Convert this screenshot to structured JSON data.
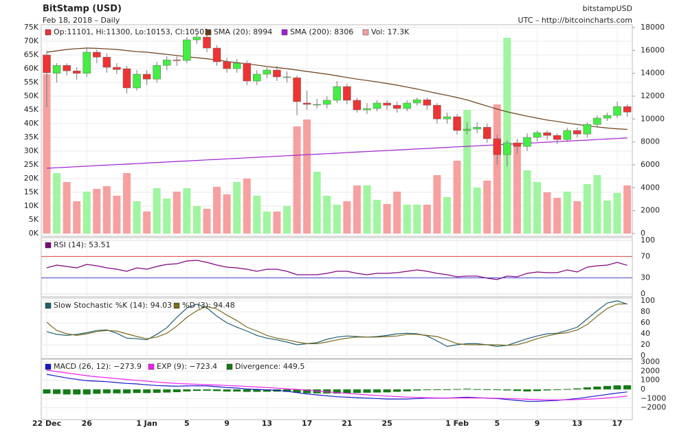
{
  "chart_data": [
    {
      "type": "candlestick",
      "title": "BitStamp (USD)",
      "subtitle": "Feb 18, 2018 – Daily",
      "source": "bitstampUSD",
      "note": "UTC – http://bitcoincharts.com",
      "categories": [
        "22 Dec",
        null,
        null,
        null,
        "26",
        null,
        null,
        null,
        null,
        null,
        "1 Jan",
        null,
        null,
        null,
        "5",
        null,
        null,
        null,
        "9",
        null,
        null,
        null,
        "13",
        null,
        null,
        null,
        "17",
        null,
        null,
        null,
        "21",
        null,
        null,
        null,
        "25",
        null,
        null,
        null,
        null,
        null,
        null,
        "1 Feb",
        null,
        null,
        null,
        "5",
        null,
        null,
        null,
        "9",
        null,
        null,
        null,
        "13",
        null,
        null,
        null,
        "17",
        null
      ],
      "ohlc_label": "Op:11101, Hi:11300, Lo:10153, Cl:10501",
      "up_color": "#44ee44",
      "down_color": "#ee3333",
      "open": [
        65000,
        58300,
        61200,
        59200,
        58300,
        66000,
        64200,
        60500,
        60000,
        53000,
        58000,
        56200,
        61200,
        63200,
        63000,
        70500,
        71500,
        67500,
        62500,
        60000,
        62000,
        55500,
        58000,
        59500,
        57000,
        56700,
        47500,
        47000,
        47000,
        48500,
        53500,
        48500,
        45000,
        45500,
        47500,
        46700,
        45500,
        47500,
        48700,
        46700,
        41700,
        42500,
        37500,
        38000,
        38700,
        34500,
        28700,
        33000,
        31700,
        35000,
        36700,
        35700,
        34200,
        37500,
        36200,
        39700,
        42000,
        43000,
        46200
      ],
      "high": [
        66500,
        62000,
        62000,
        60500,
        67500,
        67000,
        65500,
        62000,
        61000,
        59500,
        59500,
        62500,
        64500,
        64500,
        71500,
        73000,
        72500,
        68500,
        64000,
        63500,
        63000,
        59500,
        60500,
        61000,
        59000,
        57500,
        52000,
        49000,
        50000,
        55500,
        54500,
        49500,
        47500,
        48500,
        48500,
        48000,
        48500,
        49500,
        49500,
        47500,
        44000,
        43500,
        40500,
        40500,
        40000,
        36000,
        34000,
        34500,
        36500,
        37500,
        37500,
        36500,
        38500,
        38500,
        40500,
        43000,
        44000,
        48000,
        47000
      ],
      "low": [
        46000,
        55000,
        57500,
        56000,
        57000,
        62000,
        58500,
        58000,
        51000,
        52000,
        54000,
        55000,
        59500,
        61000,
        62000,
        69000,
        66000,
        61000,
        58500,
        58500,
        54000,
        54000,
        56500,
        55500,
        55000,
        43000,
        45000,
        45500,
        45500,
        47500,
        47000,
        44000,
        43500,
        44500,
        45000,
        44000,
        44500,
        46500,
        45000,
        40000,
        40000,
        36000,
        36000,
        36500,
        33000,
        25000,
        24500,
        29000,
        30000,
        33500,
        34000,
        32500,
        33500,
        35000,
        35000,
        38500,
        41000,
        42000,
        42500
      ],
      "close": [
        58500,
        61200,
        59200,
        58300,
        66000,
        64200,
        60500,
        59700,
        53000,
        58000,
        56200,
        61200,
        63200,
        63000,
        70500,
        71500,
        67500,
        62500,
        60000,
        62000,
        55500,
        58000,
        59500,
        57000,
        57000,
        48000,
        47000,
        47000,
        48500,
        53500,
        48500,
        45000,
        45500,
        47500,
        46700,
        45500,
        47500,
        48700,
        46700,
        41700,
        42500,
        37500,
        38000,
        38700,
        34500,
        28700,
        33000,
        31700,
        35000,
        36700,
        35700,
        34200,
        37500,
        36200,
        39700,
        42000,
        43000,
        46200,
        44200
      ],
      "series": [
        {
          "name": "SMA (20): 8994",
          "color": "#6b3b14",
          "values": [
            66000,
            66500,
            67000,
            67300,
            67500,
            67400,
            67200,
            67000,
            66600,
            66200,
            66000,
            65600,
            65200,
            64800,
            64300,
            64000,
            63600,
            63200,
            62600,
            62200,
            61800,
            61300,
            60800,
            60400,
            60000,
            59500,
            59000,
            58500,
            58000,
            57400,
            56800,
            56200,
            55700,
            55200,
            54600,
            54000,
            53300,
            52600,
            51800,
            51000,
            50300,
            49500,
            48600,
            47500,
            46400,
            45300,
            44300,
            43500,
            42700,
            42000,
            41300,
            40800,
            40200,
            39700,
            39200,
            38800,
            38400,
            38100,
            37900
          ]
        },
        {
          "name": "SMA (200): 8306",
          "color": "#a020d0",
          "values": [
            23750,
            23940,
            24130,
            24320,
            24510,
            24700,
            24890,
            25080,
            25270,
            25460,
            25650,
            25840,
            26030,
            26220,
            26410,
            26600,
            26790,
            26980,
            27170,
            27360,
            27550,
            27740,
            27930,
            28120,
            28310,
            28500,
            28690,
            28880,
            29070,
            29260,
            29450,
            29640,
            29830,
            30020,
            30210,
            30400,
            30590,
            30780,
            30970,
            31160,
            31350,
            31540,
            31730,
            31920,
            32110,
            32300,
            32490,
            32680,
            32870,
            33060,
            33250,
            33440,
            33630,
            33820,
            34010,
            34200,
            34390,
            34580,
            34770
          ]
        },
        {
          "name": "Vol: 17.3K",
          "color": "#f6a0a0",
          "up_color": "#a0f5a0",
          "kind": "bar",
          "axis": "y2",
          "values": [
            13920,
            5280,
            4500,
            2820,
            3660,
            3900,
            4140,
            3300,
            5280,
            2820,
            1920,
            3960,
            3060,
            3660,
            3960,
            2400,
            2160,
            4080,
            3420,
            4500,
            4800,
            3300,
            1920,
            1920,
            2400,
            9360,
            9960,
            5400,
            3300,
            2520,
            2820,
            4200,
            4200,
            2940,
            2580,
            3660,
            2520,
            2520,
            2520,
            5100,
            3180,
            6360,
            10800,
            4020,
            4620,
            11280,
            17100,
            7860,
            5520,
            4500,
            3600,
            3120,
            3660,
            2820,
            4320,
            5100,
            2880,
            3540,
            4200
          ]
        }
      ],
      "ylim": [
        0,
        75000
      ],
      "yticks": [
        {
          "value": 0,
          "label": "0K"
        },
        {
          "value": 5000,
          "label": "5K"
        },
        {
          "value": 10000,
          "label": "10K"
        },
        {
          "value": 15000,
          "label": "15K"
        },
        {
          "value": 20000,
          "label": "20K"
        },
        {
          "value": 25000,
          "label": "25K"
        },
        {
          "value": 30000,
          "label": "30K"
        },
        {
          "value": 35000,
          "label": "35K"
        },
        {
          "value": 40000,
          "label": "40K"
        },
        {
          "value": 45000,
          "label": "45K"
        },
        {
          "value": 50000,
          "label": "50K"
        },
        {
          "value": 55000,
          "label": "55K"
        },
        {
          "value": 60000,
          "label": "60K"
        },
        {
          "value": 65000,
          "label": "65K"
        },
        {
          "value": 70000,
          "label": "70K"
        },
        {
          "value": 75000,
          "label": "75K"
        }
      ],
      "y2lim": [
        0,
        18000
      ],
      "y2ticks": [
        0,
        2000,
        4000,
        6000,
        8000,
        10000,
        12000,
        14000,
        16000,
        18000
      ],
      "grid": true
    },
    {
      "type": "line",
      "series": [
        {
          "name": "RSI (14): 53.51",
          "color": "#800080",
          "values": [
            48.7,
            53.8,
            51.3,
            48.7,
            55.1,
            52.6,
            48.7,
            46.2,
            42.3,
            48.7,
            46.2,
            51.3,
            55.1,
            56.4,
            61.5,
            62.8,
            59.0,
            53.8,
            50.0,
            48.7,
            46.2,
            42.3,
            46.2,
            46.2,
            42.3,
            35.9,
            35.9,
            35.9,
            38.5,
            42.3,
            42.3,
            38.5,
            35.9,
            38.5,
            38.5,
            39.7,
            42.3,
            44.9,
            42.3,
            38.5,
            35.9,
            32.1,
            33.3,
            33.3,
            29.5,
            26.9,
            33.3,
            32.1,
            38.5,
            41.0,
            39.7,
            39.7,
            44.9,
            41.0,
            50.0,
            52.6,
            53.8,
            59.0,
            53.51
          ]
        }
      ],
      "ylim": [
        0,
        100
      ],
      "yticks": [
        0,
        30,
        70,
        100
      ],
      "tick_line_colors": [
        "#dddddd",
        "#4040d0",
        "#e04040",
        "#dddddd"
      ]
    },
    {
      "type": "line",
      "series": [
        {
          "name": "Slow Stochastic %K (14): 94.03",
          "color": "#1f6070",
          "values": [
            44,
            39,
            37,
            39,
            42,
            46,
            47,
            41,
            32,
            31,
            29,
            39,
            51,
            70,
            87,
            94,
            87,
            72,
            60,
            52,
            45,
            37,
            32,
            29,
            25,
            20,
            22,
            24,
            30,
            34,
            36,
            35,
            34,
            35,
            37,
            40,
            41,
            40,
            36,
            27,
            17,
            20,
            22,
            22,
            20,
            17,
            19,
            25,
            31,
            36,
            40,
            41,
            46,
            52,
            67,
            82,
            96,
            100,
            94.03
          ]
        },
        {
          "name": "%D (3): 94.48",
          "color": "#7a6a1c",
          "values": [
            61,
            46,
            40,
            37,
            40,
            44,
            46,
            45,
            40,
            35,
            31,
            34,
            41,
            54,
            70,
            82,
            90,
            85,
            74,
            64,
            52,
            45,
            37,
            32,
            29,
            25,
            22,
            22,
            25,
            29,
            32,
            34,
            34,
            34,
            35,
            36,
            39,
            39,
            37,
            35,
            29,
            22,
            20,
            20,
            20,
            20,
            19,
            20,
            25,
            31,
            36,
            40,
            42,
            47,
            57,
            72,
            86,
            94,
            94.48
          ]
        }
      ],
      "ylim": [
        0,
        100
      ],
      "yticks": [
        0,
        20,
        40,
        60,
        80,
        100
      ]
    },
    {
      "type": "line",
      "series": [
        {
          "name": "MACD (26, 12): −273.9",
          "color": "#1515c8",
          "values": [
            1650,
            1450,
            1250,
            1100,
            950,
            900,
            850,
            750,
            650,
            600,
            500,
            430,
            380,
            350,
            380,
            400,
            380,
            300,
            200,
            150,
            50,
            0,
            -50,
            -100,
            -200,
            -350,
            -500,
            -600,
            -700,
            -800,
            -850,
            -900,
            -950,
            -1000,
            -1050,
            -1050,
            -1050,
            -1000,
            -950,
            -950,
            -950,
            -900,
            -850,
            -900,
            -950,
            -1000,
            -1100,
            -1200,
            -1300,
            -1300,
            -1250,
            -1200,
            -1100,
            -1000,
            -850,
            -700,
            -550,
            -400,
            -273.9
          ]
        },
        {
          "name": "EXP (9): −723.4",
          "color": "#f020f0",
          "values": [
            2100,
            1950,
            1800,
            1650,
            1500,
            1380,
            1280,
            1180,
            1080,
            990,
            900,
            800,
            720,
            650,
            600,
            560,
            520,
            480,
            430,
            380,
            320,
            260,
            200,
            140,
            70,
            0,
            -80,
            -170,
            -260,
            -350,
            -430,
            -510,
            -590,
            -660,
            -730,
            -790,
            -840,
            -880,
            -910,
            -930,
            -940,
            -940,
            -930,
            -930,
            -940,
            -960,
            -990,
            -1030,
            -1080,
            -1120,
            -1140,
            -1150,
            -1140,
            -1110,
            -1070,
            -1010,
            -930,
            -840,
            -723.4
          ]
        },
        {
          "name": "Divergence: 449.5",
          "color": "#167a16",
          "kind": "bar",
          "values": [
            -450,
            -500,
            -550,
            -550,
            -550,
            -480,
            -430,
            -430,
            -430,
            -390,
            -400,
            -370,
            -340,
            -300,
            -220,
            -160,
            -140,
            -180,
            -230,
            -230,
            -270,
            -260,
            -250,
            -240,
            -270,
            -350,
            -420,
            -430,
            -440,
            -450,
            -420,
            -390,
            -360,
            -340,
            -320,
            -260,
            -210,
            -120,
            -40,
            -20,
            -10,
            40,
            80,
            30,
            -10,
            -40,
            -110,
            -170,
            -220,
            -180,
            -110,
            -50,
            40,
            110,
            220,
            310,
            380,
            440,
            449.5
          ]
        }
      ],
      "ylim": [
        -3000,
        3000
      ],
      "yticks": [
        {
          "value": -2000,
          "label": "−2000"
        },
        {
          "value": -1000,
          "label": "−1000"
        },
        0,
        1000,
        2000,
        3000
      ]
    }
  ]
}
